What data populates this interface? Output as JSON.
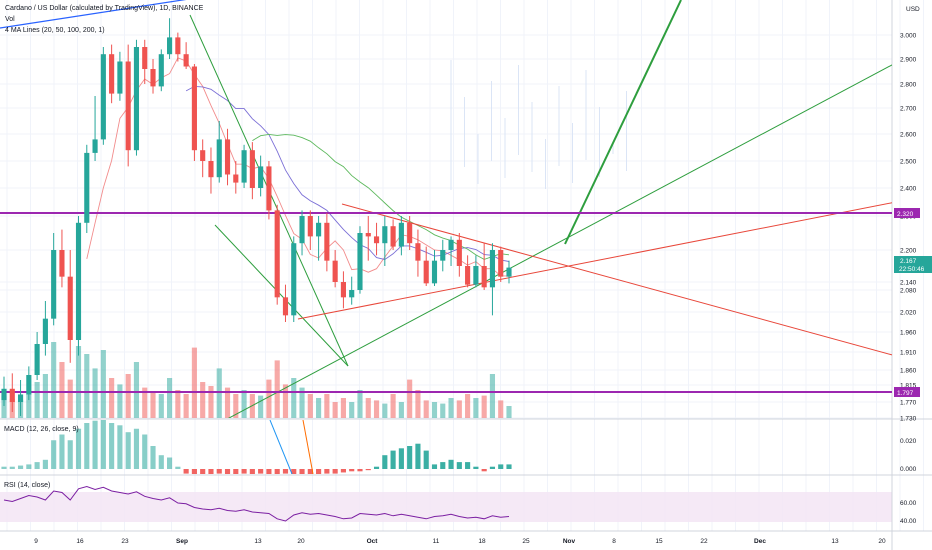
{
  "header": {
    "title": "Cardano / US Dollar (calculated by TradingView), 1D, BINANCE",
    "vol_label": "Vol",
    "ma_label": "4 MA Lines (20, 50, 100, 200, 1)",
    "currency": "USD",
    "macd_label": "MACD (12, 26, close, 9)",
    "rsi_label": "RSI (14, close)"
  },
  "tags": {
    "level_high": "2.320",
    "price": "2.167",
    "countdown": "22:50:46",
    "level_low": "1.797"
  },
  "colors": {
    "up": "#26a69a",
    "down": "#ef5350",
    "purple": "#9c27b0",
    "green_line": "#2e9e3e",
    "red_line": "#e8473a",
    "ma20": "#f28c8c",
    "ma50": "#7b6fd6",
    "ma100": "#5cb85c",
    "rsi": "#7b1fa2"
  },
  "chart_data": {
    "type": "candlestick",
    "title": "Cardano / US Dollar (calculated by TradingView), 1D, BINANCE",
    "ylabel": "USD",
    "ylim": [
      1.73,
      3.1
    ],
    "price_ticks": [
      "3.000",
      "2.900",
      "2.800",
      "2.700",
      "2.600",
      "2.500",
      "2.400",
      "2.300",
      "2.200",
      "2.140",
      "2.080",
      "2.020",
      "1.960",
      "1.910",
      "1.860",
      "1.815",
      "1.770",
      "1.730"
    ],
    "x_ticks": [
      "9",
      "16",
      "23",
      "Sep",
      "13",
      "20",
      "Oct",
      "11",
      "18",
      "25",
      "Nov",
      "8",
      "15",
      "22",
      "Dec",
      "13",
      "20"
    ],
    "candles": [
      {
        "o": 1.775,
        "h": 1.84,
        "l": 1.76,
        "c": 1.805
      },
      {
        "o": 1.805,
        "h": 1.85,
        "l": 1.745,
        "c": 1.77
      },
      {
        "o": 1.77,
        "h": 1.83,
        "l": 1.735,
        "c": 1.79
      },
      {
        "o": 1.79,
        "h": 1.87,
        "l": 1.775,
        "c": 1.845
      },
      {
        "o": 1.845,
        "h": 1.96,
        "l": 1.83,
        "c": 1.93
      },
      {
        "o": 1.93,
        "h": 2.05,
        "l": 1.9,
        "c": 2.0
      },
      {
        "o": 2.0,
        "h": 2.25,
        "l": 1.98,
        "c": 2.2
      },
      {
        "o": 2.2,
        "h": 2.26,
        "l": 2.1,
        "c": 2.15
      },
      {
        "o": 2.15,
        "h": 2.2,
        "l": 1.88,
        "c": 1.94
      },
      {
        "o": 1.94,
        "h": 2.3,
        "l": 1.9,
        "c": 2.28
      },
      {
        "o": 2.28,
        "h": 2.56,
        "l": 2.25,
        "c": 2.53
      },
      {
        "o": 2.53,
        "h": 2.75,
        "l": 2.5,
        "c": 2.58
      },
      {
        "o": 2.58,
        "h": 2.95,
        "l": 2.56,
        "c": 2.92
      },
      {
        "o": 2.92,
        "h": 2.96,
        "l": 2.72,
        "c": 2.76
      },
      {
        "o": 2.76,
        "h": 2.93,
        "l": 2.73,
        "c": 2.89
      },
      {
        "o": 2.89,
        "h": 2.96,
        "l": 2.48,
        "c": 2.54
      },
      {
        "o": 2.54,
        "h": 2.98,
        "l": 2.52,
        "c": 2.95
      },
      {
        "o": 2.95,
        "h": 2.98,
        "l": 2.8,
        "c": 2.86
      },
      {
        "o": 2.86,
        "h": 2.9,
        "l": 2.76,
        "c": 2.79
      },
      {
        "o": 2.79,
        "h": 2.94,
        "l": 2.77,
        "c": 2.92
      },
      {
        "o": 2.92,
        "h": 3.07,
        "l": 2.9,
        "c": 2.99
      },
      {
        "o": 2.99,
        "h": 3.01,
        "l": 2.89,
        "c": 2.92
      },
      {
        "o": 2.92,
        "h": 2.97,
        "l": 2.86,
        "c": 2.87
      },
      {
        "o": 2.87,
        "h": 2.88,
        "l": 2.5,
        "c": 2.54
      },
      {
        "o": 2.54,
        "h": 2.58,
        "l": 2.44,
        "c": 2.5
      },
      {
        "o": 2.5,
        "h": 2.55,
        "l": 2.38,
        "c": 2.44
      },
      {
        "o": 2.44,
        "h": 2.65,
        "l": 2.42,
        "c": 2.58
      },
      {
        "o": 2.58,
        "h": 2.62,
        "l": 2.41,
        "c": 2.45
      },
      {
        "o": 2.45,
        "h": 2.5,
        "l": 2.38,
        "c": 2.42
      },
      {
        "o": 2.42,
        "h": 2.56,
        "l": 2.4,
        "c": 2.54
      },
      {
        "o": 2.54,
        "h": 2.57,
        "l": 2.36,
        "c": 2.4
      },
      {
        "o": 2.4,
        "h": 2.52,
        "l": 2.37,
        "c": 2.48
      },
      {
        "o": 2.48,
        "h": 2.5,
        "l": 2.29,
        "c": 2.32
      },
      {
        "o": 2.32,
        "h": 2.34,
        "l": 2.04,
        "c": 2.06
      },
      {
        "o": 2.06,
        "h": 2.12,
        "l": 1.99,
        "c": 2.01
      },
      {
        "o": 2.01,
        "h": 2.24,
        "l": 1.99,
        "c": 2.22
      },
      {
        "o": 2.22,
        "h": 2.32,
        "l": 2.19,
        "c": 2.3
      },
      {
        "o": 2.3,
        "h": 2.32,
        "l": 2.2,
        "c": 2.24
      },
      {
        "o": 2.24,
        "h": 2.3,
        "l": 2.18,
        "c": 2.28
      },
      {
        "o": 2.28,
        "h": 2.31,
        "l": 2.16,
        "c": 2.18
      },
      {
        "o": 2.18,
        "h": 2.2,
        "l": 2.1,
        "c": 2.14
      },
      {
        "o": 2.14,
        "h": 2.16,
        "l": 2.03,
        "c": 2.06
      },
      {
        "o": 2.06,
        "h": 2.15,
        "l": 2.04,
        "c": 2.08
      },
      {
        "o": 2.08,
        "h": 2.27,
        "l": 2.07,
        "c": 2.25
      },
      {
        "o": 2.25,
        "h": 2.3,
        "l": 2.18,
        "c": 2.24
      },
      {
        "o": 2.24,
        "h": 2.28,
        "l": 2.19,
        "c": 2.22
      },
      {
        "o": 2.22,
        "h": 2.3,
        "l": 2.17,
        "c": 2.27
      },
      {
        "o": 2.27,
        "h": 2.29,
        "l": 2.2,
        "c": 2.21
      },
      {
        "o": 2.21,
        "h": 2.3,
        "l": 2.19,
        "c": 2.28
      },
      {
        "o": 2.28,
        "h": 2.3,
        "l": 2.2,
        "c": 2.22
      },
      {
        "o": 2.22,
        "h": 2.26,
        "l": 2.15,
        "c": 2.18
      },
      {
        "o": 2.18,
        "h": 2.21,
        "l": 2.11,
        "c": 2.13
      },
      {
        "o": 2.13,
        "h": 2.2,
        "l": 2.11,
        "c": 2.18
      },
      {
        "o": 2.18,
        "h": 2.23,
        "l": 2.16,
        "c": 2.2
      },
      {
        "o": 2.2,
        "h": 2.24,
        "l": 2.17,
        "c": 2.23
      },
      {
        "o": 2.23,
        "h": 2.25,
        "l": 2.15,
        "c": 2.17
      },
      {
        "o": 2.17,
        "h": 2.19,
        "l": 2.1,
        "c": 2.12
      },
      {
        "o": 2.12,
        "h": 2.19,
        "l": 2.1,
        "c": 2.17
      },
      {
        "o": 2.17,
        "h": 2.22,
        "l": 2.08,
        "c": 2.1
      },
      {
        "o": 2.1,
        "h": 2.22,
        "l": 2.01,
        "c": 2.2
      },
      {
        "o": 2.2,
        "h": 2.21,
        "l": 2.14,
        "c": 2.15
      },
      {
        "o": 2.15,
        "h": 2.18,
        "l": 2.13,
        "c": 2.167
      }
    ],
    "volume": [
      0.28,
      0.24,
      0.22,
      0.3,
      0.45,
      0.55,
      0.95,
      0.7,
      0.48,
      0.9,
      0.8,
      0.62,
      0.85,
      0.5,
      0.42,
      0.55,
      0.7,
      0.38,
      0.32,
      0.3,
      0.5,
      0.35,
      0.3,
      0.88,
      0.45,
      0.4,
      0.62,
      0.38,
      0.3,
      0.35,
      0.3,
      0.28,
      0.48,
      0.72,
      0.42,
      0.5,
      0.38,
      0.3,
      0.25,
      0.3,
      0.2,
      0.25,
      0.2,
      0.35,
      0.25,
      0.22,
      0.18,
      0.3,
      0.2,
      0.48,
      0.35,
      0.22,
      0.2,
      0.18,
      0.25,
      0.22,
      0.3,
      0.25,
      0.28,
      0.55,
      0.22,
      0.15
    ],
    "macd_hist": [
      0.002,
      0.002,
      0.003,
      0.004,
      0.006,
      0.008,
      0.025,
      0.03,
      0.025,
      0.035,
      0.04,
      0.042,
      0.045,
      0.04,
      0.038,
      0.032,
      0.035,
      0.03,
      0.02,
      0.012,
      0.01,
      0.002,
      -0.004,
      -0.005,
      -0.005,
      -0.005,
      -0.004,
      -0.005,
      -0.005,
      -0.004,
      -0.005,
      -0.004,
      -0.005,
      -0.005,
      -0.004,
      -0.005,
      -0.006,
      -0.006,
      -0.005,
      -0.004,
      -0.004,
      -0.003,
      -0.002,
      -0.002,
      -0.001,
      0.002,
      0.012,
      0.016,
      0.018,
      0.02,
      0.022,
      0.016,
      0.004,
      0.006,
      0.008,
      0.006,
      0.006,
      0.002,
      -0.002,
      0.002,
      0.004,
      0.004
    ],
    "macd_ticks": [
      "0.020",
      "0.000"
    ],
    "rsi": [
      70,
      68,
      72,
      76,
      74,
      70,
      82,
      80,
      70,
      85,
      88,
      84,
      87,
      82,
      80,
      78,
      81,
      75,
      72,
      70,
      73,
      66,
      65,
      60,
      58,
      57,
      59,
      56,
      55,
      57,
      54,
      53,
      52,
      45,
      42,
      50,
      53,
      51,
      52,
      50,
      48,
      45,
      46,
      52,
      51,
      50,
      52,
      49,
      51,
      49,
      47,
      45,
      48,
      49,
      51,
      48,
      46,
      47,
      45,
      49,
      47,
      48
    ],
    "rsi_ticks": [
      "60.00",
      "40.00"
    ],
    "levels": [
      2.32,
      1.797
    ]
  }
}
